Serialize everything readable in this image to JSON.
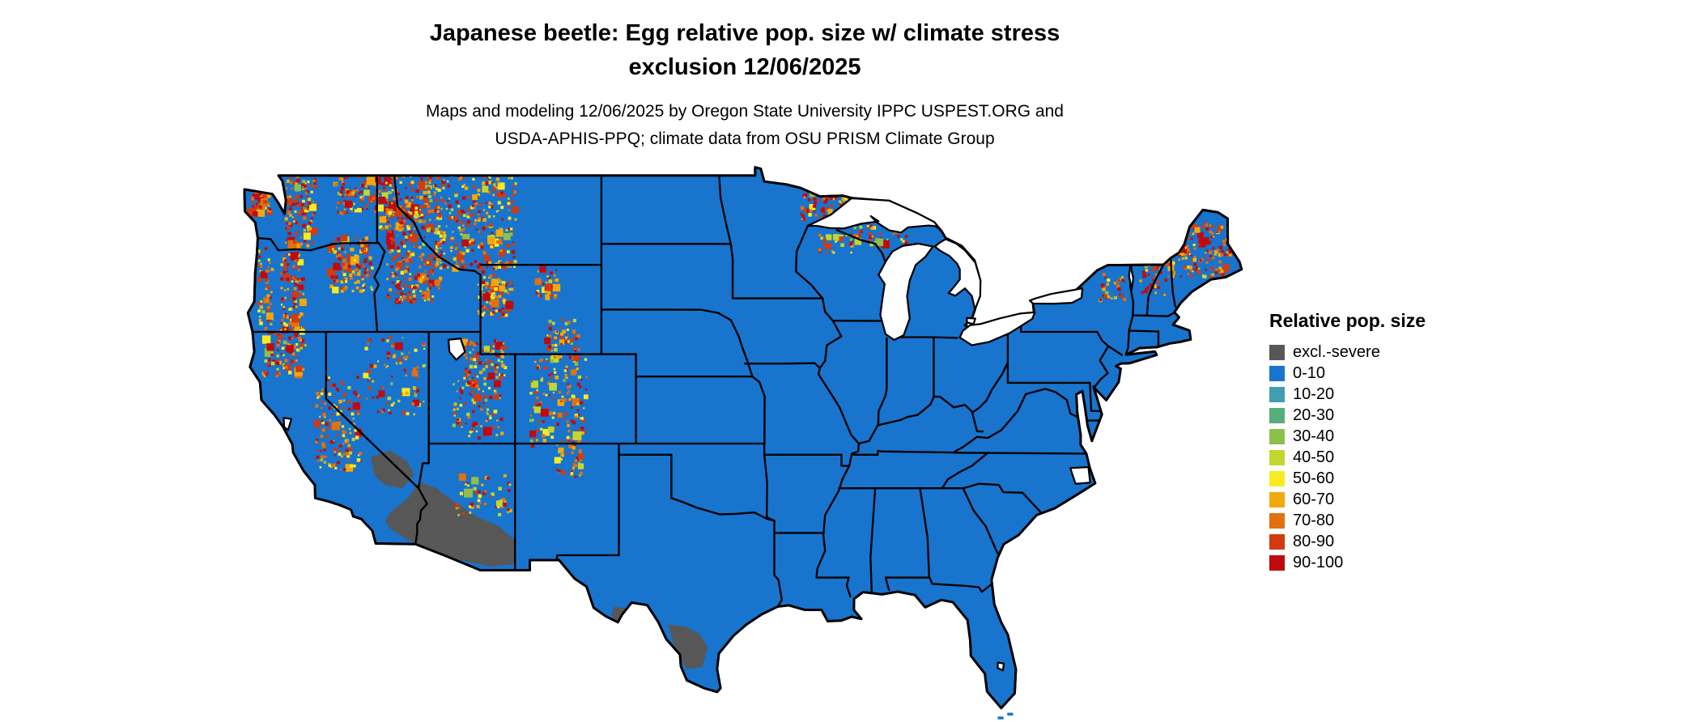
{
  "page": {
    "background": "#FFFFFF"
  },
  "title": {
    "line1": "Japanese beetle: Egg relative pop. size w/ climate stress",
    "line2": "exclusion 12/06/2025"
  },
  "subtitle": {
    "line1": "Maps and modeling 12/06/2025 by Oregon State University IPPC USPEST.ORG and",
    "line2": "USDA-APHIS-PPQ; climate data from OSU PRISM Climate Group"
  },
  "map": {
    "description": "Contiguous United States map of Japanese beetle egg relative population size with climate stress exclusion",
    "water_color": "#FFFFFF",
    "state_border_color": "#000000"
  },
  "legend": {
    "title": "Relative pop. size",
    "items": [
      {
        "label": "excl.-severe",
        "color": "#575757"
      },
      {
        "label": "0-10",
        "color": "#1874CD"
      },
      {
        "label": "10-20",
        "color": "#3F9FB0"
      },
      {
        "label": "20-30",
        "color": "#55AE7C"
      },
      {
        "label": "30-40",
        "color": "#8CC04B"
      },
      {
        "label": "40-50",
        "color": "#C3D62F"
      },
      {
        "label": "50-60",
        "color": "#F7EC21"
      },
      {
        "label": "60-70",
        "color": "#F2A90B"
      },
      {
        "label": "70-80",
        "color": "#E2700E"
      },
      {
        "label": "80-90",
        "color": "#D23A10"
      },
      {
        "label": "90-100",
        "color": "#C00A0E"
      }
    ]
  }
}
